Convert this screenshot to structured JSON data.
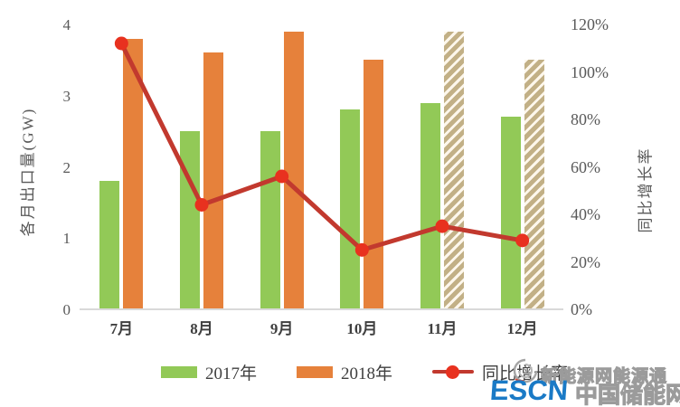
{
  "chart_data": {
    "type": "combo-bar-line",
    "title": "",
    "categories": [
      "7月",
      "8月",
      "9月",
      "10月",
      "11月",
      "12月"
    ],
    "series": [
      {
        "name": "2017年",
        "type": "bar",
        "color": "#92c957",
        "values": [
          1.8,
          2.5,
          2.5,
          2.8,
          2.9,
          2.7
        ]
      },
      {
        "name": "2018年",
        "type": "bar",
        "color": "#e6813b",
        "values": [
          3.8,
          3.6,
          3.9,
          3.5,
          3.9,
          3.5
        ],
        "hatched_indices": [
          4,
          5
        ],
        "hatch_stripe_color": "#c2b086",
        "hatch_bg_color": "#fdf7ec"
      },
      {
        "name": "同比增长率",
        "type": "line",
        "axis": "right",
        "color": "#c2392e",
        "marker_color": "#e8311f",
        "values_pct": [
          112,
          44,
          56,
          25,
          35,
          29
        ]
      }
    ],
    "left_axis": {
      "label": "各月出口量(GW)",
      "min": 0,
      "max": 4,
      "ticks": [
        "4",
        "3",
        "2",
        "1",
        "0"
      ]
    },
    "right_axis": {
      "label": "同比增长率",
      "min_pct": 0,
      "max_pct": 120,
      "ticks": [
        "120%",
        "100%",
        "80%",
        "60%",
        "40%",
        "20%",
        "0%"
      ]
    },
    "grid": "off",
    "legend_position": "bottom"
  },
  "legend": {
    "items": [
      {
        "label": "2017年",
        "swatch_type": "bar",
        "color": "#92c957"
      },
      {
        "label": "2018年",
        "swatch_type": "bar",
        "color": "#e6813b"
      },
      {
        "label": "同比增长率",
        "swatch_type": "line",
        "color": "#c2392e"
      }
    ]
  },
  "watermark": {
    "line1": "新能源网能源通",
    "brand": "ESCN",
    "line2": "中国储能网",
    "brand_color": "#1a7ac6"
  }
}
